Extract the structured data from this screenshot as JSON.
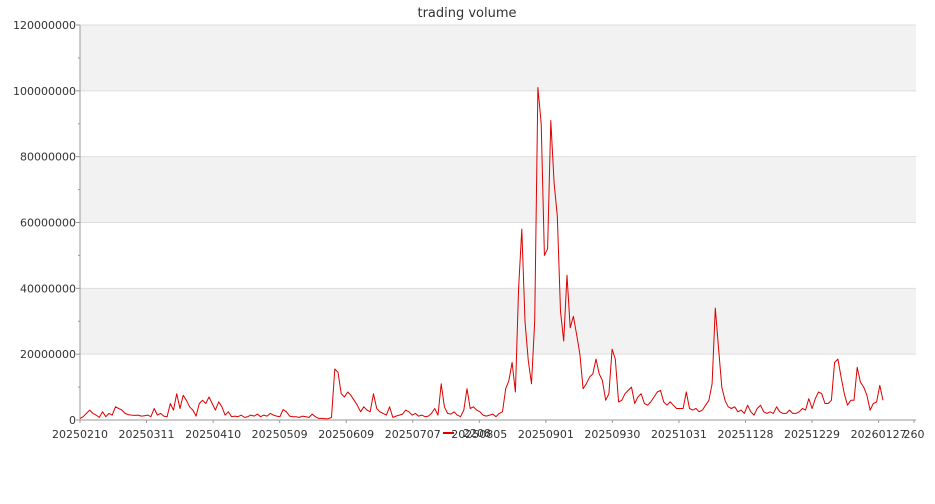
{
  "chart_data": {
    "type": "line",
    "title": "trading volume",
    "xlabel": "",
    "ylabel": "",
    "ylim": [
      0,
      120000000
    ],
    "yticks": [
      "0",
      "20000000",
      "40000000",
      "60000000",
      "80000000",
      "100000000",
      "120000000"
    ],
    "xticks": [
      "20250210",
      "20250311",
      "20250410",
      "20250509",
      "20250609",
      "20250707",
      "20250805",
      "20250901",
      "20250930",
      "20251031",
      "20251128",
      "20251229",
      "20260127",
      "260"
    ],
    "legend": {
      "position": "bottom",
      "label": "2208"
    },
    "grid": true,
    "colors": {
      "series": "#dd0000",
      "band": "#f2f2f2",
      "gridline": "#dddddd",
      "axis": "#999999"
    },
    "series": [
      {
        "name": "2208",
        "values": [
          500000,
          1000000,
          2000000,
          3000000,
          2000000,
          1500000,
          800000,
          2500000,
          1000000,
          2000000,
          1500000,
          4000000,
          3500000,
          3000000,
          2000000,
          1600000,
          1500000,
          1400000,
          1500000,
          1200000,
          1300000,
          1500000,
          1000000,
          3500000,
          1500000,
          2000000,
          1200000,
          1000000,
          5000000,
          3000000,
          8000000,
          3500000,
          7500000,
          6000000,
          4000000,
          3000000,
          1200000,
          5000000,
          6000000,
          5000000,
          7000000,
          5000000,
          3000000,
          5500000,
          4000000,
          1500000,
          2500000,
          1000000,
          1200000,
          1000000,
          1500000,
          800000,
          1000000,
          1500000,
          1200000,
          1800000,
          1000000,
          1500000,
          1200000,
          2000000,
          1500000,
          1200000,
          1000000,
          3200000,
          2500000,
          1200000,
          1000000,
          1000000,
          800000,
          1200000,
          1000000,
          800000,
          1800000,
          1000000,
          500000,
          500000,
          400000,
          400000,
          800000,
          15500000,
          14500000,
          8000000,
          7000000,
          8500000,
          7500000,
          6000000,
          4500000,
          2500000,
          4000000,
          3000000,
          2500000,
          8000000,
          3500000,
          2500000,
          2000000,
          1500000,
          4000000,
          800000,
          1200000,
          1500000,
          1800000,
          3000000,
          2500000,
          1500000,
          2000000,
          1200000,
          1500000,
          1000000,
          1200000,
          2000000,
          3500000,
          1500000,
          11000000,
          4000000,
          2000000,
          1800000,
          2500000,
          1500000,
          1000000,
          3000000,
          9500000,
          3500000,
          4000000,
          3000000,
          2500000,
          1500000,
          1200000,
          1500000,
          1800000,
          1000000,
          2000000,
          2500000,
          9500000,
          12000000,
          17500000,
          8500000,
          40000000,
          58000000,
          30000000,
          18000000,
          11000000,
          30000000,
          101000000,
          90000000,
          50000000,
          52000000,
          91000000,
          72000000,
          62000000,
          33000000,
          24000000,
          44000000,
          28000000,
          31500000,
          26000000,
          20000000,
          9500000,
          11000000,
          13000000,
          14000000,
          18500000,
          14000000,
          12000000,
          6000000,
          8000000,
          21500000,
          18500000,
          5500000,
          6000000,
          8000000,
          9000000,
          10000000,
          5000000,
          7000000,
          8000000,
          5000000,
          4500000,
          5500000,
          7000000,
          8500000,
          9000000,
          5500000,
          4500000,
          5500000,
          4500000,
          3500000,
          3500000,
          3500000,
          8500000,
          3500000,
          3000000,
          3500000,
          2500000,
          3000000,
          4500000,
          6000000,
          11000000,
          34000000,
          22000000,
          10000000,
          6000000,
          4000000,
          3500000,
          4000000,
          2500000,
          3000000,
          2000000,
          4500000,
          2500000,
          1500000,
          3500000,
          4500000,
          2500000,
          2000000,
          2500000,
          2000000,
          4000000,
          2500000,
          2000000,
          2000000,
          3000000,
          2000000,
          2000000,
          2500000,
          3500000,
          3000000,
          6500000,
          3500000,
          6500000,
          8500000,
          8000000,
          5000000,
          5000000,
          6000000,
          17500000,
          18500000,
          13000000,
          8000000,
          4500000,
          6000000,
          6000000,
          16000000,
          11500000,
          10000000,
          7500000,
          3000000,
          5000000,
          5500000,
          10500000,
          6000000
        ]
      }
    ]
  }
}
